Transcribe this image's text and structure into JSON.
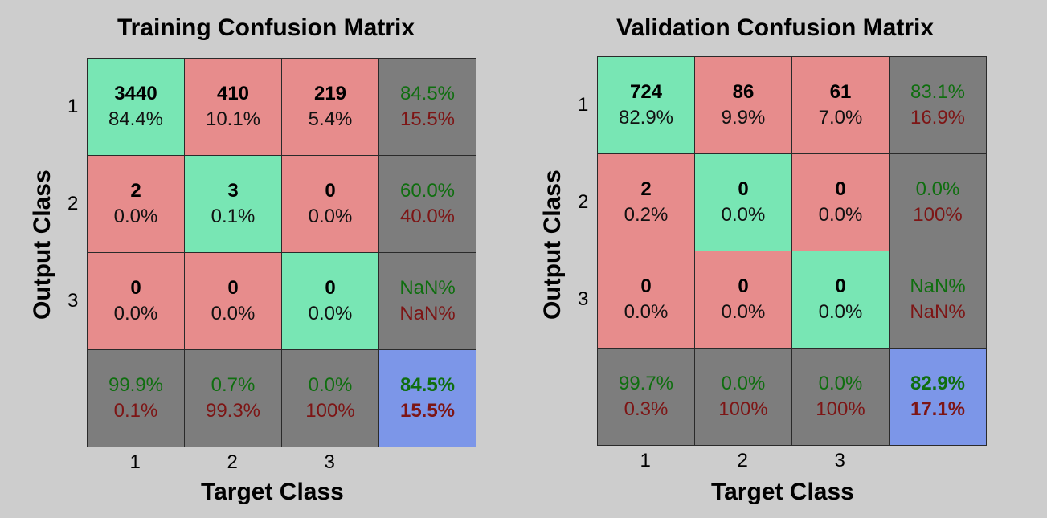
{
  "chart_data": [
    {
      "type": "table",
      "title": "Training Confusion Matrix",
      "xlabel": "Target Class",
      "ylabel": "Output Class",
      "x_ticks": [
        "1",
        "2",
        "3"
      ],
      "y_ticks": [
        "1",
        "2",
        "3"
      ],
      "cells": [
        [
          {
            "count": "3440",
            "pct": "84.4%"
          },
          {
            "count": "410",
            "pct": "10.1%"
          },
          {
            "count": "219",
            "pct": "5.4%"
          }
        ],
        [
          {
            "count": "2",
            "pct": "0.0%"
          },
          {
            "count": "3",
            "pct": "0.1%"
          },
          {
            "count": "0",
            "pct": "0.0%"
          }
        ],
        [
          {
            "count": "0",
            "pct": "0.0%"
          },
          {
            "count": "0",
            "pct": "0.0%"
          },
          {
            "count": "0",
            "pct": "0.0%"
          }
        ]
      ],
      "row_summary": [
        {
          "correct": "84.5%",
          "wrong": "15.5%"
        },
        {
          "correct": "60.0%",
          "wrong": "40.0%"
        },
        {
          "correct": "NaN%",
          "wrong": "NaN%"
        }
      ],
      "col_summary": [
        {
          "correct": "99.9%",
          "wrong": "0.1%"
        },
        {
          "correct": "0.7%",
          "wrong": "99.3%"
        },
        {
          "correct": "0.0%",
          "wrong": "100%"
        }
      ],
      "overall": {
        "correct": "84.5%",
        "wrong": "15.5%"
      }
    },
    {
      "type": "table",
      "title": "Validation Confusion Matrix",
      "xlabel": "Target Class",
      "ylabel": "Output Class",
      "x_ticks": [
        "1",
        "2",
        "3"
      ],
      "y_ticks": [
        "1",
        "2",
        "3"
      ],
      "cells": [
        [
          {
            "count": "724",
            "pct": "82.9%"
          },
          {
            "count": "86",
            "pct": "9.9%"
          },
          {
            "count": "61",
            "pct": "7.0%"
          }
        ],
        [
          {
            "count": "2",
            "pct": "0.2%"
          },
          {
            "count": "0",
            "pct": "0.0%"
          },
          {
            "count": "0",
            "pct": "0.0%"
          }
        ],
        [
          {
            "count": "0",
            "pct": "0.0%"
          },
          {
            "count": "0",
            "pct": "0.0%"
          },
          {
            "count": "0",
            "pct": "0.0%"
          }
        ]
      ],
      "row_summary": [
        {
          "correct": "83.1%",
          "wrong": "16.9%"
        },
        {
          "correct": "0.0%",
          "wrong": "100%"
        },
        {
          "correct": "NaN%",
          "wrong": "NaN%"
        }
      ],
      "col_summary": [
        {
          "correct": "99.7%",
          "wrong": "0.3%"
        },
        {
          "correct": "0.0%",
          "wrong": "100%"
        },
        {
          "correct": "0.0%",
          "wrong": "100%"
        }
      ],
      "overall": {
        "correct": "82.9%",
        "wrong": "17.1%"
      }
    }
  ],
  "colors": {
    "background": "#cdcdcd",
    "correct_cell": "#78e6b4",
    "wrong_cell": "#e78c8c",
    "summary_cell": "#7d7d7d",
    "overall_cell": "#7c96e8",
    "correct_text": "#0f6e0f",
    "wrong_text": "#7d1515"
  }
}
